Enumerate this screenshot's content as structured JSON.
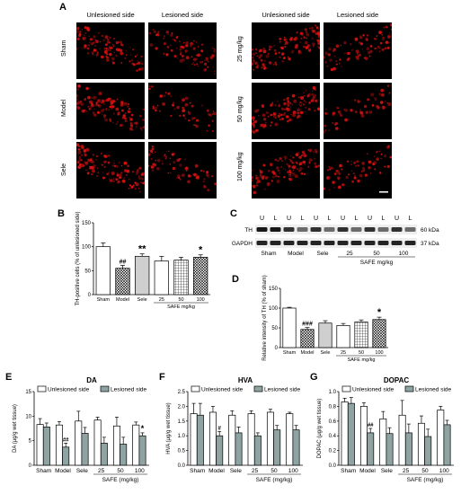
{
  "panel_a": {
    "label": "A",
    "headers": [
      "Unlesioned side",
      "Lesioned side",
      "Unlesioned side",
      "Lesioned side"
    ],
    "rows_left": [
      "Sham",
      "Model",
      "Sele"
    ],
    "rows_right": [
      "25 mg/kg",
      "50 mg/kg",
      "100 mg/kg"
    ]
  },
  "chart_data": [
    {
      "id": "B",
      "type": "bar",
      "label": "B",
      "categories": [
        "Sham",
        "Model",
        "Sele",
        "25",
        "50",
        "100"
      ],
      "values": [
        100,
        55,
        80,
        70,
        72,
        78
      ],
      "errors": [
        8,
        6,
        5,
        10,
        6,
        5
      ],
      "annotations": [
        "",
        "##",
        "**",
        "",
        "",
        "*"
      ],
      "ylabel": "TH-positive cells (% of unlesioned side)",
      "yticks": [
        "0",
        "50",
        "100",
        "150"
      ],
      "ylim": [
        0,
        150
      ],
      "group_label": "SAFE mg/kg",
      "patterns": [
        "white",
        "crosshatch",
        "gray-dots",
        "white",
        "grid",
        "crosshatch"
      ]
    },
    {
      "id": "D",
      "type": "bar",
      "label": "D",
      "categories": [
        "Sham",
        "Model",
        "Sele",
        "25",
        "50",
        "100"
      ],
      "values": [
        100,
        46,
        62,
        56,
        65,
        71
      ],
      "errors": [
        2,
        5,
        6,
        5,
        5,
        6
      ],
      "annotations": [
        "",
        "###",
        "",
        "",
        "",
        "*"
      ],
      "ylabel": "Relative intensity of TH (% of sham)",
      "yticks": [
        "0",
        "50",
        "100",
        "150"
      ],
      "ylim": [
        0,
        150
      ],
      "group_label": "SAFE mg/kg",
      "patterns": [
        "white",
        "crosshatch",
        "gray-dots",
        "white",
        "grid",
        "crosshatch"
      ]
    },
    {
      "id": "E",
      "type": "bar",
      "label": "E",
      "title": "DA",
      "legend": [
        "Unlesioned side",
        "Lesioned side"
      ],
      "categories": [
        "Sham",
        "Model",
        "Sele",
        "25",
        "50",
        "100"
      ],
      "series": [
        {
          "name": "Unlesioned side",
          "values": [
            8.3,
            8.2,
            9.0,
            9.2,
            8.0,
            8.2
          ],
          "errors": [
            1.2,
            0.7,
            2.0,
            0.6,
            1.8,
            0.6
          ]
        },
        {
          "name": "Lesioned side",
          "values": [
            7.8,
            3.7,
            6.5,
            4.5,
            4.3,
            6.0
          ],
          "errors": [
            0.8,
            0.8,
            1.2,
            1.2,
            1.4,
            0.6
          ]
        }
      ],
      "annotations_lesioned": [
        "",
        "##",
        "",
        "",
        "",
        "*"
      ],
      "ylabel": "DA (μg/g wet tissue)",
      "yticks": [
        "0",
        "5",
        "10",
        "15"
      ],
      "ylim": [
        0,
        15
      ],
      "group_label": "SAFE (mg/kg)"
    },
    {
      "id": "F",
      "type": "bar",
      "label": "F",
      "title": "HVA",
      "legend": [
        "Unlesioned side",
        "Lesioned side"
      ],
      "categories": [
        "Sham",
        "Model",
        "Sele",
        "25",
        "50",
        "100"
      ],
      "series": [
        {
          "name": "Unlesioned side",
          "values": [
            1.75,
            1.8,
            1.7,
            1.75,
            1.8,
            1.75
          ],
          "errors": [
            0.35,
            0.2,
            0.15,
            0.1,
            0.1,
            0.05
          ]
        },
        {
          "name": "Lesioned side",
          "values": [
            1.7,
            1.0,
            1.1,
            1.0,
            1.2,
            1.2
          ],
          "errors": [
            0.4,
            0.15,
            0.2,
            0.1,
            0.15,
            0.15
          ]
        }
      ],
      "annotations_lesioned": [
        "",
        "#",
        "",
        "",
        "",
        ""
      ],
      "ylabel": "HVA (μg/g wet tissue)",
      "yticks": [
        "0.0",
        "0.5",
        "1.0",
        "1.5",
        "2.0",
        "2.5"
      ],
      "ylim": [
        0,
        2.5
      ],
      "group_label": "SAFE (mg/kg)"
    },
    {
      "id": "G",
      "type": "bar",
      "label": "G",
      "title": "DOPAC",
      "legend": [
        "Unlesioned side",
        "Lesioned side"
      ],
      "categories": [
        "Sham",
        "Model",
        "Sele",
        "25",
        "50",
        "100"
      ],
      "series": [
        {
          "name": "Unlesioned side",
          "values": [
            0.86,
            0.8,
            0.63,
            0.68,
            0.57,
            0.75
          ],
          "errors": [
            0.05,
            0.05,
            0.1,
            0.2,
            0.1,
            0.05
          ]
        },
        {
          "name": "Lesioned side",
          "values": [
            0.84,
            0.44,
            0.43,
            0.44,
            0.39,
            0.55
          ],
          "errors": [
            0.08,
            0.06,
            0.08,
            0.12,
            0.1,
            0.06
          ]
        }
      ],
      "annotations_lesioned": [
        "",
        "##",
        "",
        "",
        "",
        ""
      ],
      "ylabel": "DOPAC (μg/g wet tissue)",
      "yticks": [
        "0.0",
        "0.2",
        "0.4",
        "0.6",
        "0.8",
        "1.0"
      ],
      "ylim": [
        0,
        1.0
      ],
      "group_label": "SAFE (mg/kg)"
    }
  ],
  "panel_c": {
    "label": "C",
    "lane_labels": [
      "U",
      "L",
      "U",
      "L",
      "U",
      "L",
      "U",
      "L",
      "U",
      "L",
      "U",
      "L"
    ],
    "rows": [
      {
        "name": "TH",
        "kda": "60 kDa"
      },
      {
        "name": "GAPDH",
        "kda": "37 kDa"
      }
    ],
    "groups": [
      "Sham",
      "Model",
      "Sele",
      "25",
      "50",
      "100"
    ],
    "group_label": "SAFE mg/kg"
  },
  "colors": {
    "fluor": "#e01010",
    "lesioned_bar": "#8fa3a3",
    "gray_bar": "#bdbdbd"
  }
}
